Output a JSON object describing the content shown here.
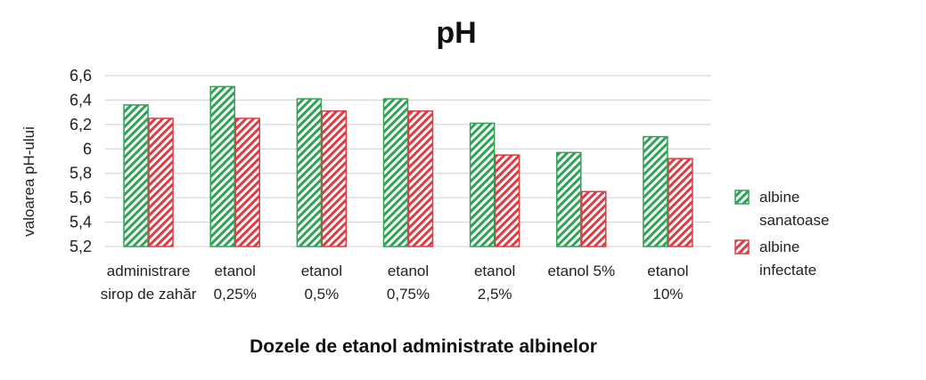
{
  "chart_data": {
    "type": "bar",
    "title": "pH",
    "xlabel": "Dozele de etanol administrate albinelor",
    "ylabel": "valoarea pH-ului",
    "ylim": [
      5.2,
      6.6
    ],
    "y_ticks": [
      "5,2",
      "5,4",
      "5,6",
      "5,8",
      "6",
      "6,2",
      "6,4",
      "6,6"
    ],
    "y_tick_values": [
      5.2,
      5.4,
      5.6,
      5.8,
      6.0,
      6.2,
      6.4,
      6.6
    ],
    "grid": true,
    "legend_position": "right",
    "categories": [
      [
        "administrare",
        "sirop de zahăr"
      ],
      [
        "etanol",
        "0,25%"
      ],
      [
        "etanol",
        "0,5%"
      ],
      [
        "etanol",
        "0,75%"
      ],
      [
        "etanol",
        "2,5%"
      ],
      [
        "etanol 5%"
      ],
      [
        "etanol",
        "10%"
      ]
    ],
    "series": [
      {
        "name": [
          "albine",
          "sanatoase"
        ],
        "color": "#2ea356",
        "values": [
          6.36,
          6.51,
          6.41,
          6.41,
          6.21,
          5.97,
          6.1
        ]
      },
      {
        "name": [
          "albine",
          "infectate"
        ],
        "color": "#e03a44",
        "values": [
          6.25,
          6.25,
          6.31,
          6.31,
          5.95,
          5.65,
          5.92
        ]
      }
    ]
  }
}
